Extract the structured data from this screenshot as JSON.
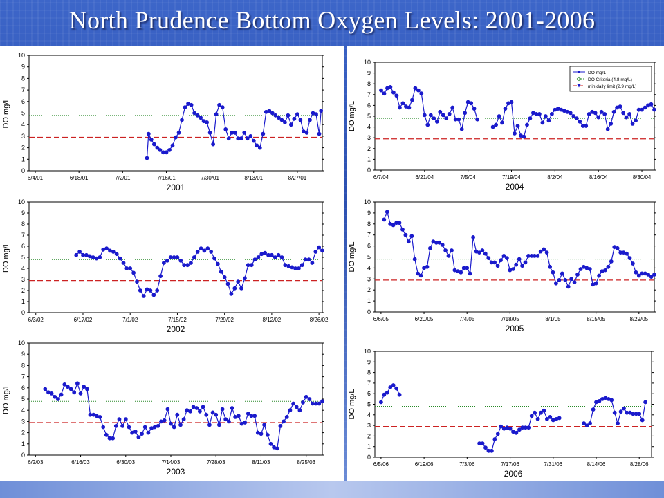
{
  "slide": {
    "title": "North Prudence Bottom Oxygen Levels: 2001-2006"
  },
  "colors": {
    "series": "#1a1acc",
    "criteria": "#2a8a2a",
    "limit": "#cc2222"
  },
  "chart_data": [
    {
      "type": "line",
      "title": "2001",
      "ylabel": "DO mg/L",
      "ylim": [
        0,
        10
      ],
      "yticks": [
        "0",
        "1",
        "2",
        "3",
        "4",
        "5",
        "6",
        "7",
        "8",
        "9",
        "10"
      ],
      "xticks": [
        "6/4/01",
        "6/18/01",
        "7/2/01",
        "7/16/01",
        "7/30/01",
        "8/13/01",
        "8/27/01"
      ],
      "criteria": 4.8,
      "limit": 2.9,
      "series": [
        {
          "x": [
            35.8,
            36.3,
            37.2,
            38.1,
            39.1,
            40,
            41,
            42,
            43,
            44,
            45,
            46,
            47,
            48,
            49,
            50,
            51,
            52,
            53,
            54,
            55,
            56,
            57,
            58,
            59,
            60,
            61,
            62,
            63,
            64,
            65,
            66,
            67,
            68,
            69,
            70,
            71,
            72,
            73,
            74,
            75,
            76,
            77,
            78,
            79,
            80,
            81,
            82,
            83,
            84,
            85,
            86,
            87,
            88,
            89,
            90,
            91,
            91.6
          ],
          "y": [
            1.1,
            3.2,
            2.7,
            2.3,
            2.0,
            1.8,
            1.6,
            1.6,
            1.8,
            2.2,
            2.9,
            3.3,
            4.4,
            5.5,
            5.8,
            5.7,
            5.0,
            4.8,
            4.6,
            4.3,
            4.2,
            3.3,
            2.3,
            4.9,
            5.7,
            5.5,
            3.6,
            2.8,
            3.3,
            3.3,
            2.8,
            2.8,
            3.3,
            2.8,
            3.0,
            2.6,
            2.2,
            2.0,
            3.2,
            5.1,
            5.2,
            5.0,
            4.8,
            4.6,
            4.4,
            4.2,
            4.8,
            4.0,
            4.5,
            4.9,
            4.4,
            3.4,
            3.3,
            4.4,
            5.0,
            4.9,
            3.2,
            5.2
          ]
        }
      ]
    },
    {
      "type": "line",
      "title": "2002",
      "ylabel": "DO mg/L",
      "ylim": [
        0,
        10
      ],
      "yticks": [
        "0",
        "1",
        "2",
        "3",
        "4",
        "5",
        "6",
        "7",
        "8",
        "9",
        "10"
      ],
      "xticks": [
        "6/3/02",
        "6/17/02",
        "7/1/02",
        "7/15/02",
        "7/29/02",
        "8/12/02",
        "8/26/02"
      ],
      "criteria": 4.8,
      "limit": 2.9,
      "series": [
        {
          "x": [
            12,
            13,
            14,
            15,
            16,
            17,
            18,
            19,
            20,
            21,
            22,
            23,
            24,
            25,
            26,
            27,
            28,
            29,
            30,
            31,
            32,
            33,
            34,
            35,
            36,
            37,
            38,
            39,
            40,
            41,
            42,
            43,
            44,
            45,
            46,
            47,
            48,
            49,
            50,
            51,
            52,
            53,
            54,
            55,
            56,
            57,
            58,
            59,
            60,
            61,
            62,
            63,
            64,
            65,
            66,
            67,
            68,
            69,
            70,
            71,
            72,
            73,
            74,
            75,
            76,
            77,
            78,
            79,
            80,
            81,
            82,
            83,
            84,
            85
          ],
          "y": [
            5.2,
            5.5,
            5.2,
            5.2,
            5.1,
            5.0,
            4.9,
            5.0,
            5.7,
            5.8,
            5.6,
            5.5,
            5.3,
            4.9,
            4.5,
            4.0,
            4.0,
            3.6,
            2.8,
            2.0,
            1.5,
            2.1,
            2.0,
            1.6,
            2.0,
            3.3,
            4.5,
            4.7,
            5.0,
            5.0,
            5.0,
            4.7,
            4.3,
            4.3,
            4.5,
            5.0,
            5.5,
            5.8,
            5.6,
            5.8,
            5.5,
            4.9,
            4.4,
            3.7,
            3.2,
            2.6,
            1.7,
            2.2,
            2.8,
            2.2,
            3.1,
            4.3,
            4.3,
            4.8,
            5.0,
            5.3,
            5.4,
            5.2,
            5.2,
            5.0,
            5.2,
            5.0,
            4.3,
            4.2,
            4.1,
            4.0,
            4.0,
            4.3,
            4.8,
            4.8,
            4.5,
            5.5,
            5.9,
            5.6
          ]
        }
      ]
    },
    {
      "type": "line",
      "title": "2003",
      "ylabel": "DO mg/L",
      "ylim": [
        0,
        10
      ],
      "yticks": [
        "0",
        "1",
        "2",
        "3",
        "4",
        "5",
        "6",
        "7",
        "8",
        "9",
        "10"
      ],
      "xticks": [
        "6/2/03",
        "6/16/03",
        "6/30/03",
        "7/14/03",
        "7/28/03",
        "8/11/03",
        "8/25/03"
      ],
      "criteria": 4.8,
      "limit": 2.9,
      "series": [
        {
          "x": [
            3,
            4,
            5,
            6,
            7,
            8,
            9,
            10,
            11,
            12,
            13,
            14,
            15,
            16,
            17,
            18,
            19,
            20,
            21,
            22,
            23,
            24,
            25,
            26,
            27,
            28,
            29,
            30,
            31,
            32,
            33,
            34,
            35,
            36,
            37,
            38,
            39,
            40,
            41,
            42,
            43,
            44,
            45,
            46,
            47,
            48,
            49,
            50,
            51,
            52,
            53,
            54,
            55,
            56,
            57,
            58,
            59,
            60,
            61,
            62,
            63,
            64,
            65,
            66,
            67,
            68,
            69,
            70,
            71,
            72,
            73,
            74,
            75,
            76,
            77,
            78,
            79,
            80,
            81,
            82,
            83,
            84,
            85,
            86,
            87,
            88,
            89
          ],
          "y": [
            5.9,
            5.6,
            5.5,
            5.2,
            5.0,
            5.4,
            6.3,
            6.1,
            5.9,
            5.6,
            6.4,
            5.5,
            6.1,
            5.9,
            3.6,
            3.6,
            3.5,
            3.4,
            2.5,
            1.8,
            1.5,
            1.5,
            2.6,
            3.2,
            2.6,
            3.2,
            2.5,
            2.0,
            2.1,
            1.6,
            1.9,
            2.5,
            2.0,
            2.4,
            2.5,
            2.6,
            3.0,
            3.1,
            4.1,
            2.8,
            2.5,
            3.6,
            2.7,
            3.2,
            4.0,
            3.9,
            4.3,
            4.2,
            3.9,
            4.3,
            3.6,
            2.7,
            3.8,
            3.6,
            2.7,
            4.1,
            3.2,
            3.0,
            4.2,
            3.4,
            3.5,
            2.8,
            2.9,
            3.7,
            3.5,
            3.5,
            2.0,
            1.9,
            2.7,
            1.8,
            1.0,
            0.7,
            0.6,
            2.6,
            3.0,
            3.4,
            4.0,
            4.6,
            4.3,
            4.0,
            4.7,
            5.2,
            5.0,
            4.6,
            4.6,
            4.6,
            4.8
          ]
        }
      ]
    },
    {
      "type": "line",
      "title": "2004",
      "ylabel": "DO mg/L",
      "ylim": [
        0,
        10
      ],
      "yticks": [
        "0",
        "1",
        "2",
        "3",
        "4",
        "5",
        "6",
        "7",
        "8",
        "9",
        "10"
      ],
      "xticks": [
        "6/7/04",
        "6/21/04",
        "7/5/04",
        "7/19/04",
        "8/2/04",
        "8/16/04",
        "8/30/04"
      ],
      "criteria": 4.8,
      "limit": 2.9,
      "legend": [
        "DO mg/L",
        "DO Criteria (4.8 mg/L)",
        "min daily limit (2.9 mg/L)"
      ],
      "series": [
        {
          "x": [
            0,
            1,
            2,
            3,
            4,
            5,
            6,
            7,
            8,
            9,
            10,
            11,
            12,
            13,
            14,
            15,
            16,
            17,
            18,
            19,
            20,
            21,
            22,
            23,
            24,
            25,
            26,
            27,
            28,
            29,
            30,
            31,
            32,
            33,
            34,
            35
          ],
          "y": [
            7.4,
            7.1,
            7.6,
            7.7,
            7.2,
            6.9,
            5.8,
            6.2,
            5.9,
            5.8,
            6.5,
            7.6,
            7.4,
            7.1,
            5.1,
            4.2,
            5.1,
            4.8,
            4.5,
            5.4,
            5.1,
            4.8,
            5.2,
            5.8,
            4.7,
            4.7,
            3.8,
            5.3,
            6.3,
            6.2,
            5.7,
            4.7,
            null,
            null,
            null,
            null
          ]
        },
        {
          "x": [
            36,
            37,
            38,
            39,
            40,
            41,
            42,
            43,
            44,
            45,
            46,
            47,
            48,
            49,
            50,
            51,
            52,
            53,
            54,
            55,
            56,
            57,
            58,
            59,
            60,
            61,
            62,
            63,
            64,
            65,
            66,
            67,
            68,
            69,
            70,
            71,
            72,
            73,
            74,
            75,
            76,
            77,
            78,
            79,
            80,
            81,
            82,
            83,
            84,
            85,
            86,
            87,
            88
          ],
          "y": [
            4.0,
            4.2,
            5.0,
            4.4,
            5.7,
            6.2,
            6.3,
            3.4,
            4.1,
            3.2,
            3.1,
            4.2,
            4.8,
            5.3,
            5.2,
            5.2,
            4.4,
            5.0,
            4.6,
            5.2,
            5.6,
            5.7,
            5.6,
            5.5,
            5.4,
            5.3,
            5.0,
            4.8,
            4.5,
            4.1,
            4.1,
            5.2,
            5.4,
            5.3,
            4.9,
            5.4,
            5.2,
            3.8,
            4.3,
            5.4,
            5.8,
            5.9,
            5.3,
            4.9,
            5.2,
            4.3,
            4.6,
            5.6,
            5.6,
            5.8,
            6.0,
            6.1,
            5.6
          ]
        }
      ]
    },
    {
      "type": "line",
      "title": "2005",
      "ylabel": "DO mg/L",
      "ylim": [
        0,
        10
      ],
      "yticks": [
        "0",
        "1",
        "2",
        "3",
        "4",
        "5",
        "6",
        "7",
        "8",
        "9",
        "10"
      ],
      "xticks": [
        "6/6/05",
        "6/20/05",
        "7/4/05",
        "7/18/05",
        "8/1/05",
        "8/15/05",
        "8/29/05"
      ],
      "criteria": 4.8,
      "limit": 2.9,
      "series": [
        {
          "x": [
            1,
            2,
            3,
            4,
            5,
            6,
            7,
            8,
            9,
            10,
            11,
            12,
            13,
            14,
            15,
            16,
            17,
            18,
            19,
            20,
            21,
            22,
            23,
            24,
            25,
            26,
            27,
            28,
            29,
            30,
            31,
            32,
            33,
            34,
            35,
            36,
            37,
            38,
            39,
            40,
            41,
            42,
            43,
            44,
            45,
            46,
            47,
            48,
            49,
            50,
            51,
            52,
            53,
            54,
            55,
            56,
            57,
            58,
            59,
            60,
            61,
            62,
            63,
            64,
            65,
            66,
            67,
            68,
            69,
            70,
            71,
            72,
            73,
            74,
            75,
            76,
            77,
            78,
            79,
            80,
            81,
            82,
            83,
            84,
            85,
            86,
            87,
            88,
            89
          ],
          "y": [
            8.4,
            9.1,
            8.0,
            7.9,
            8.1,
            8.1,
            7.5,
            7.0,
            6.4,
            6.9,
            4.8,
            3.5,
            3.3,
            4.0,
            4.1,
            5.8,
            6.4,
            6.3,
            6.3,
            6.1,
            5.6,
            5.1,
            5.6,
            3.8,
            3.7,
            3.6,
            4.0,
            4.0,
            3.5,
            6.8,
            5.5,
            5.4,
            5.6,
            5.3,
            4.9,
            4.5,
            4.5,
            4.2,
            4.7,
            5.1,
            4.9,
            3.8,
            3.9,
            4.3,
            4.8,
            4.2,
            4.5,
            5.1,
            5.1,
            5.1,
            5.1,
            5.5,
            5.7,
            5.4,
            4.1,
            3.6,
            2.6,
            2.9,
            3.5,
            2.9,
            2.3,
            3.0,
            2.7,
            3.4,
            3.9,
            4.1,
            4.0,
            3.9,
            2.5,
            2.6,
            3.3,
            3.7,
            3.8,
            4.1,
            4.6,
            5.9,
            5.8,
            5.4,
            5.4,
            5.3,
            4.9,
            4.4,
            3.6,
            3.3,
            3.5,
            3.5,
            3.4,
            3.2,
            3.4
          ]
        }
      ]
    },
    {
      "type": "line",
      "title": "2006",
      "ylabel": "DO mg/L",
      "ylim": [
        0,
        10
      ],
      "yticks": [
        "0",
        "1",
        "2",
        "3",
        "4",
        "5",
        "6",
        "7",
        "8",
        "9",
        "10"
      ],
      "xticks": [
        "6/5/06",
        "6/19/06",
        "7/3/06",
        "7/17/06",
        "7/31/06",
        "8/14/06",
        "8/28/06"
      ],
      "criteria": 4.8,
      "limit": 2.9,
      "series": [
        {
          "x": [
            -2,
            -1,
            0,
            1,
            2,
            3,
            4
          ],
          "y": [
            5.2,
            5.9,
            6.1,
            6.6,
            6.8,
            6.5,
            5.9
          ]
        },
        {
          "x": [
            30,
            31,
            32,
            33,
            34,
            35,
            36,
            37,
            38,
            39,
            40,
            41,
            42,
            43,
            44,
            45,
            46,
            47,
            48,
            49,
            50,
            51,
            52,
            53,
            54,
            55,
            56,
            57,
            58
          ],
          "y": [
            1.3,
            1.3,
            0.9,
            0.6,
            0.6,
            1.7,
            2.2,
            2.9,
            2.7,
            2.8,
            2.7,
            2.4,
            2.3,
            2.6,
            2.8,
            2.8,
            2.8,
            3.9,
            4.2,
            3.6,
            4.2,
            4.4,
            3.6,
            3.8,
            3.5,
            3.6,
            3.7,
            null,
            null
          ]
        },
        {
          "x": [
            64,
            65,
            66,
            67,
            68,
            69,
            70,
            71,
            72,
            73,
            74,
            75,
            76,
            77,
            78,
            79,
            80,
            81,
            82,
            83,
            84
          ],
          "y": [
            3.2,
            3.0,
            3.2,
            4.5,
            5.2,
            5.3,
            5.5,
            5.6,
            5.5,
            5.4,
            4.2,
            3.2,
            4.3,
            4.6,
            4.2,
            4.2,
            4.1,
            4.1,
            4.1,
            3.5,
            5.2
          ]
        }
      ]
    }
  ]
}
